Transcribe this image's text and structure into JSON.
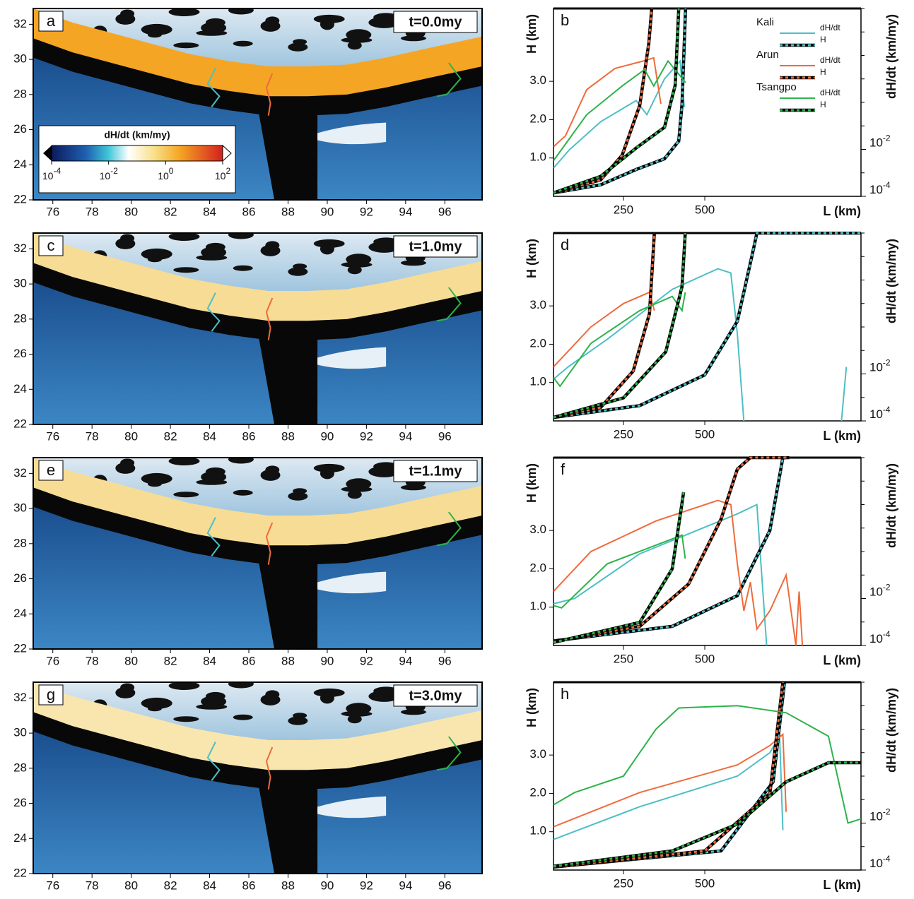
{
  "chart_data": [
    {
      "type": "map",
      "panel": "a",
      "time_label": "t=0.0my",
      "band_color": "#f5a524",
      "xlim": [
        75,
        97.9
      ],
      "ylim": [
        22,
        32.9
      ],
      "xticks": [
        76,
        78,
        80,
        82,
        84,
        86,
        88,
        90,
        92,
        94,
        96
      ],
      "yticks": [
        22,
        24,
        26,
        28,
        30,
        32
      ],
      "colorbar": {
        "title": "dH/dt (km/my)",
        "ticks": [
          {
            "value": 0.0001,
            "label": "10",
            "exponent": "-4"
          },
          {
            "value": 0.01,
            "label": "10",
            "exponent": "-2"
          },
          {
            "value": 1,
            "label": "10",
            "exponent": "0"
          },
          {
            "value": 100,
            "label": "10",
            "exponent": "2"
          }
        ]
      }
    },
    {
      "type": "line",
      "panel": "b",
      "xlim": [
        35,
        980
      ],
      "ylim": [
        0,
        4.9
      ],
      "y2lim": [
        0.0001,
        10000
      ],
      "y2log": true,
      "legend": true,
      "xlabel": "L (km)",
      "ylabel": "H (km)",
      "y2label": "dH/dt (km/my)",
      "xticks": [
        250,
        500
      ],
      "yticks": [
        {
          "value": 1,
          "label": "1.0"
        },
        {
          "value": 2,
          "label": "2.0"
        },
        {
          "value": 3,
          "label": "3.0"
        }
      ],
      "y2ticks": [
        {
          "value": 0.0001,
          "label": "10",
          "exponent": "-4"
        },
        {
          "value": 0.01,
          "label": "10",
          "exponent": "-2"
        }
      ],
      "y2minor": [
        0.001,
        0.1,
        1,
        10,
        100,
        1000,
        10000
      ],
      "series": [
        {
          "river": "Kali",
          "name": "dH/dt",
          "color": "#4dbfc4",
          "style": "solid",
          "axis": "y2",
          "x": [
            35,
            83,
            180,
            289,
            322,
            376,
            424,
            437
          ],
          "values": [
            0.0016,
            0.0093,
            0.15,
            1.2,
            0.3,
            10,
            58,
            0.63
          ]
        },
        {
          "name": "H",
          "color": "#4dbfc4",
          "style": "dashed",
          "x": [
            35,
            180,
            289,
            376,
            420,
            430,
            437,
            441
          ],
          "values": [
            0.09,
            0.3,
            0.7,
            0.98,
            1.44,
            2.4,
            4.0,
            4.9
          ]
        },
        {
          "river": "Arun",
          "name": "dH/dt",
          "color": "#ef6b3b",
          "style": "solid",
          "axis": "y2",
          "x": [
            35,
            72,
            137,
            224,
            311,
            343,
            365
          ],
          "values": [
            0.013,
            0.038,
            3.5,
            28,
            58,
            79,
            0.87
          ]
        },
        {
          "name": "H",
          "color": "#ef6b3b",
          "style": "dashed",
          "x": [
            35,
            180,
            246,
            300,
            328,
            337
          ],
          "values": [
            0.09,
            0.43,
            1.07,
            2.37,
            4.0,
            4.9
          ]
        },
        {
          "river": "Tsangpo",
          "name": "dH/dt",
          "color": "#2db34a",
          "style": "solid",
          "axis": "y2",
          "x": [
            35,
            137,
            246,
            315,
            343,
            387,
            441
          ],
          "values": [
            0.0033,
            0.3,
            5,
            25,
            5,
            58,
            7
          ]
        },
        {
          "name": "H",
          "color": "#2db34a",
          "style": "dashed",
          "x": [
            35,
            180,
            289,
            376,
            409,
            420
          ],
          "values": [
            0.09,
            0.52,
            1.26,
            1.8,
            2.9,
            4.9
          ]
        }
      ]
    },
    {
      "type": "map",
      "panel": "c",
      "time_label": "t=1.0my",
      "band_color": "#f7dc95",
      "xlim": [
        75,
        97.9
      ],
      "ylim": [
        22,
        32.9
      ],
      "xticks": [
        76,
        78,
        80,
        82,
        84,
        86,
        88,
        90,
        92,
        94,
        96
      ],
      "yticks": [
        22,
        24,
        26,
        28,
        30,
        32
      ]
    },
    {
      "type": "line",
      "panel": "d",
      "xlim": [
        35,
        980
      ],
      "ylim": [
        0,
        4.9
      ],
      "y2lim": [
        0.0001,
        10000
      ],
      "y2log": true,
      "xlabel": "L (km)",
      "ylabel": "H (km)",
      "y2label": "dH/dt (km/my)",
      "xticks": [
        250,
        500
      ],
      "yticks": [
        {
          "value": 1,
          "label": "1.0"
        },
        {
          "value": 2,
          "label": "2.0"
        },
        {
          "value": 3,
          "label": "3.0"
        }
      ],
      "y2ticks": [
        {
          "value": 0.0001,
          "label": "10",
          "exponent": "-4"
        },
        {
          "value": 0.01,
          "label": "10",
          "exponent": "-2"
        }
      ],
      "y2minor": [
        0.001,
        0.1,
        1,
        10,
        100,
        1000,
        10000
      ],
      "series": [
        {
          "color": "#4dbfc4",
          "style": "solid",
          "axis": "y2",
          "x": [
            35,
            80,
            200,
            400,
            540,
            580,
            600,
            620,
            770,
            920,
            935
          ],
          "values": [
            0.006,
            0.02,
            0.3,
            40,
            300,
            200,
            0.5,
            0.0001,
            null,
            0.0001,
            0.02
          ]
        },
        {
          "color": "#4dbfc4",
          "style": "dashed",
          "x": [
            35,
            300,
            500,
            600,
            650,
            660,
            980
          ],
          "values": [
            0.09,
            0.4,
            1.2,
            2.6,
            4.5,
            4.9,
            4.9
          ]
        },
        {
          "color": "#ef6b3b",
          "style": "solid",
          "axis": "y2",
          "x": [
            35,
            150,
            250,
            330,
            345
          ],
          "values": [
            0.02,
            1,
            10,
            30,
            5
          ]
        },
        {
          "color": "#ef6b3b",
          "style": "dashed",
          "x": [
            35,
            180,
            280,
            330,
            345
          ],
          "values": [
            0.09,
            0.35,
            1.3,
            2.8,
            4.9
          ]
        },
        {
          "color": "#2db34a",
          "style": "solid",
          "axis": "y2",
          "x": [
            35,
            55,
            150,
            300,
            400,
            430,
            440
          ],
          "values": [
            0.007,
            0.003,
            0.2,
            5,
            20,
            5,
            30
          ]
        },
        {
          "color": "#2db34a",
          "style": "dashed",
          "x": [
            35,
            250,
            380,
            430,
            440
          ],
          "values": [
            0.09,
            0.6,
            1.8,
            3.5,
            4.9
          ]
        }
      ]
    },
    {
      "type": "map",
      "panel": "e",
      "time_label": "t=1.1my",
      "band_color": "#f7dc95",
      "xlim": [
        75,
        97.9
      ],
      "ylim": [
        22,
        32.9
      ],
      "xticks": [
        76,
        78,
        80,
        82,
        84,
        86,
        88,
        90,
        92,
        94,
        96
      ],
      "yticks": [
        22,
        24,
        26,
        28,
        30,
        32
      ]
    },
    {
      "type": "line",
      "panel": "f",
      "xlim": [
        35,
        980
      ],
      "ylim": [
        0,
        4.9
      ],
      "y2lim": [
        0.0001,
        10000
      ],
      "y2log": true,
      "xlabel": "L (km)",
      "ylabel": "H (km)",
      "y2label": "dH/dt (km/my)",
      "xticks": [
        250,
        500
      ],
      "yticks": [
        {
          "value": 1,
          "label": "1.0"
        },
        {
          "value": 2,
          "label": "2.0"
        },
        {
          "value": 3,
          "label": "3.0"
        }
      ],
      "y2ticks": [
        {
          "value": 0.0001,
          "label": "10",
          "exponent": "-4"
        },
        {
          "value": 0.01,
          "label": "10",
          "exponent": "-2"
        }
      ],
      "y2minor": [
        0.001,
        0.1,
        1,
        10,
        100,
        1000,
        10000
      ],
      "series": [
        {
          "color": "#4dbfc4",
          "style": "solid",
          "axis": "y2",
          "x": [
            35,
            100,
            300,
            600,
            660,
            680,
            690
          ],
          "values": [
            0.006,
            0.01,
            0.8,
            40,
            100,
            0.01,
            0.0001
          ]
        },
        {
          "color": "#4dbfc4",
          "style": "dashed",
          "x": [
            35,
            400,
            600,
            700,
            740,
            760
          ],
          "values": [
            0.12,
            0.5,
            1.3,
            3.0,
            4.9,
            4.9
          ]
        },
        {
          "color": "#ef6b3b",
          "style": "solid",
          "axis": "y2",
          "x": [
            35,
            150,
            350,
            540,
            580,
            600,
            620,
            640,
            660,
            700,
            750,
            780,
            790,
            800
          ],
          "values": [
            0.02,
            1,
            20,
            150,
            100,
            0.3,
            0.003,
            0.05,
            0.0005,
            0.003,
            0.1,
            0.0001,
            0.02,
            0.0001
          ]
        },
        {
          "color": "#ef6b3b",
          "style": "dashed",
          "x": [
            35,
            300,
            450,
            550,
            600,
            640,
            750
          ],
          "values": [
            0.1,
            0.5,
            1.6,
            3.3,
            4.6,
            4.9,
            4.9
          ]
        },
        {
          "color": "#2db34a",
          "style": "solid",
          "axis": "y2",
          "x": [
            35,
            60,
            200,
            430,
            440
          ],
          "values": [
            0.005,
            0.004,
            0.3,
            5,
            0.5
          ]
        },
        {
          "color": "#2db34a",
          "style": "dashed",
          "x": [
            35,
            300,
            400,
            435
          ],
          "values": [
            0.08,
            0.6,
            2.0,
            4.0
          ]
        }
      ]
    },
    {
      "type": "map",
      "panel": "g",
      "time_label": "t=3.0my",
      "band_color": "#f9e6ae",
      "xlim": [
        75,
        97.9
      ],
      "ylim": [
        22,
        32.9
      ],
      "xticks": [
        76,
        78,
        80,
        82,
        84,
        86,
        88,
        90,
        92,
        94,
        96
      ],
      "yticks": [
        22,
        24,
        26,
        28,
        30,
        32
      ]
    },
    {
      "type": "line",
      "panel": "h",
      "xlim": [
        35,
        980
      ],
      "ylim": [
        0,
        4.9
      ],
      "y2lim": [
        0.0001,
        10000
      ],
      "y2log": true,
      "xlabel": "L (km)",
      "ylabel": "H (km)",
      "y2label": "dH/dt (km/my)",
      "xticks": [
        250,
        500
      ],
      "yticks": [
        {
          "value": 1,
          "label": "1.0"
        },
        {
          "value": 2,
          "label": "2.0"
        },
        {
          "value": 3,
          "label": "3.0"
        }
      ],
      "y2ticks": [
        {
          "value": 0.0001,
          "label": "10",
          "exponent": "-4"
        },
        {
          "value": 0.01,
          "label": "10",
          "exponent": "-2"
        }
      ],
      "y2minor": [
        0.001,
        0.1,
        1,
        10,
        100,
        1000,
        10000
      ],
      "series": [
        {
          "color": "#4dbfc4",
          "style": "solid",
          "axis": "y2",
          "x": [
            35,
            300,
            600,
            700,
            730,
            740
          ],
          "values": [
            0.002,
            0.05,
            1,
            10,
            50,
            0.005
          ]
        },
        {
          "color": "#4dbfc4",
          "style": "dashed",
          "x": [
            35,
            550,
            710,
            745
          ],
          "values": [
            0.08,
            0.5,
            2.3,
            4.9
          ]
        },
        {
          "color": "#ef6b3b",
          "style": "solid",
          "axis": "y2",
          "x": [
            35,
            300,
            600,
            700,
            740,
            750
          ],
          "values": [
            0.007,
            0.2,
            3,
            20,
            60,
            0.03
          ]
        },
        {
          "color": "#ef6b3b",
          "style": "dashed",
          "x": [
            35,
            500,
            700,
            740
          ],
          "values": [
            0.08,
            0.5,
            2,
            4.9
          ]
        },
        {
          "color": "#2db34a",
          "style": "solid",
          "axis": "y2",
          "x": [
            35,
            100,
            250,
            350,
            420,
            600,
            750,
            880,
            940,
            980
          ],
          "values": [
            0.06,
            0.2,
            1,
            100,
            800,
            1000,
            500,
            50,
            0.01,
            0.015
          ]
        },
        {
          "color": "#2db34a",
          "style": "dashed",
          "x": [
            35,
            400,
            600,
            750,
            880,
            980
          ],
          "values": [
            0.1,
            0.5,
            1.2,
            2.3,
            2.8,
            2.8
          ]
        }
      ]
    }
  ]
}
